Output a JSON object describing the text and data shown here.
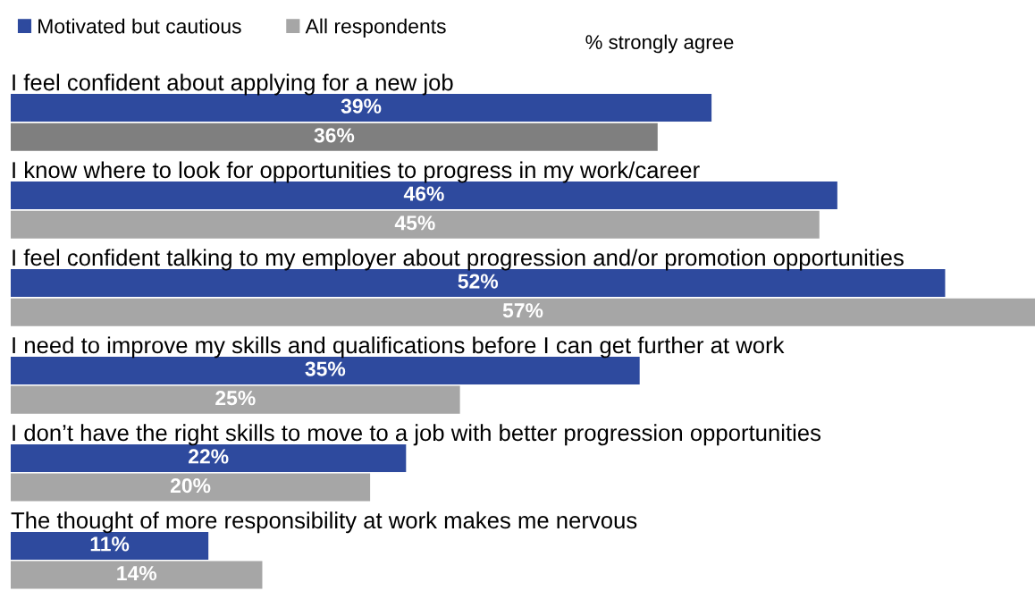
{
  "chart_data": {
    "type": "bar",
    "orientation": "horizontal",
    "categories": [
      "I feel confident about applying for a new job",
      "I know where to look for opportunities to progress in my work/career",
      "I feel confident talking to my employer about progression and/or promotion opportunities",
      "I need to improve my skills and qualifications before I can get further at work",
      "I don’t have the right skills to move to a job with better progression opportunities",
      "The thought of more responsibility at work makes me nervous"
    ],
    "series": [
      {
        "name": "Motivated but cautious",
        "color": "#2e4a9e",
        "values": [
          39,
          46,
          52,
          35,
          22,
          11
        ],
        "value_labels": [
          "39%",
          "46%",
          "52%",
          "35%",
          "22%",
          "11%"
        ]
      },
      {
        "name": "All respondents",
        "color": "#a6a6a6",
        "colors": [
          "#7f7f7f",
          "#a6a6a6",
          "#a6a6a6",
          "#a6a6a6",
          "#a6a6a6",
          "#a6a6a6"
        ],
        "values": [
          36,
          45,
          57,
          25,
          20,
          14
        ],
        "value_labels": [
          "36%",
          "45%",
          "57%",
          "25%",
          "20%",
          "14%"
        ]
      }
    ],
    "annotations": [
      "% strongly agree"
    ],
    "legend": "top left"
  }
}
